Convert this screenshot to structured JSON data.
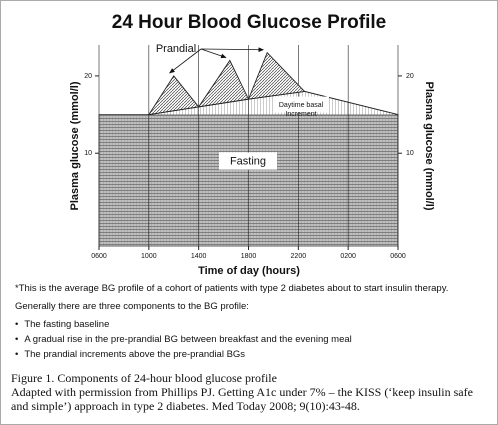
{
  "chart_data": {
    "type": "glucose-profile",
    "title": "24 Hour Blood Glucose Profile",
    "x_label": "Time of day (hours)",
    "y_label": "Plasma glucose (mmol/l)",
    "y2_label": "Plasma glucose (mmol/l)",
    "xlim": [
      6,
      30
    ],
    "xticks": [
      {
        "value": 6,
        "label": "0600"
      },
      {
        "value": 10,
        "label": "1000"
      },
      {
        "value": 14,
        "label": "1400"
      },
      {
        "value": 18,
        "label": "1800"
      },
      {
        "value": 22,
        "label": "2200"
      },
      {
        "value": 26,
        "label": "0200"
      },
      {
        "value": 30,
        "label": "0600"
      }
    ],
    "ylim": [
      -2,
      24
    ],
    "yticks": [
      10,
      20
    ],
    "y2ticks": [
      10,
      20
    ],
    "x_grid": true,
    "fasting": {
      "label": "Fasting",
      "level": 15
    },
    "basal": {
      "label": "Daytime basal Increment",
      "x": [
        10,
        14,
        18,
        22.5,
        30
      ],
      "values": [
        15,
        16,
        17,
        18,
        15
      ]
    },
    "prandial": {
      "label": "Prandial",
      "x": [
        12,
        16.5,
        19.5
      ],
      "values": [
        20,
        22,
        23
      ]
    }
  },
  "notes": {
    "footnote": "*This is the average BG profile of a cohort of patients with type 2 diabetes about to start insulin therapy.",
    "intro": "Generally there are three components to the BG profile:",
    "bullets": [
      "The fasting baseline",
      "A gradual rise in the pre-prandial BG between breakfast and the evening meal",
      "The prandial increments above the pre-prandial BGs"
    ]
  },
  "caption": {
    "title": "Figure 1. Components of 24-hour blood glucose profile",
    "source": "Adapted with permission from Phillips PJ. Getting A1c under 7% – the KISS (‘keep insulin safe and simple’) approach in type 2 diabetes. Med Today 2008; 9(10):43-48."
  }
}
